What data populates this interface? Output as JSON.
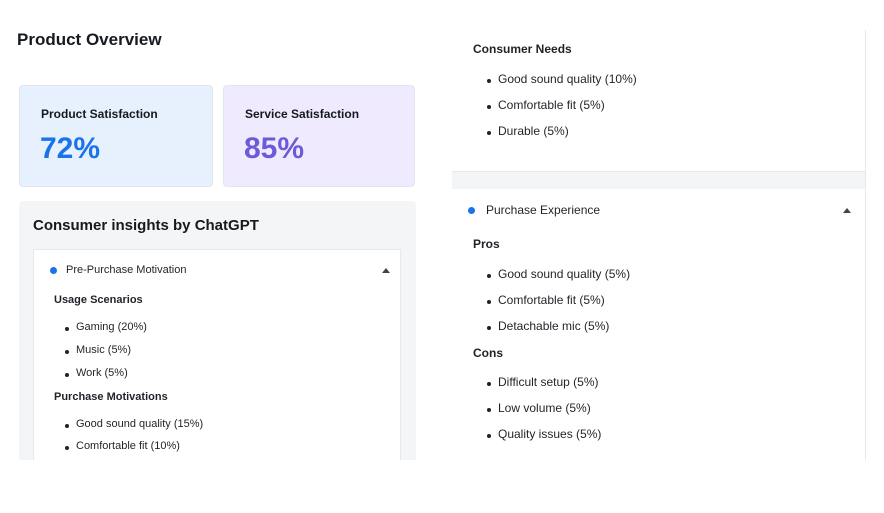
{
  "page_title": "Product Overview",
  "metrics": [
    {
      "label": "Product Satisfaction",
      "value": "72%"
    },
    {
      "label": "Service Satisfaction",
      "value": "85%"
    }
  ],
  "insights": {
    "title": "Consumer insights by ChatGPT",
    "left_accordion": {
      "title": "Pre-Purchase Motivation",
      "sections": [
        {
          "heading": "Usage Scenarios",
          "items": [
            "Gaming (20%)",
            "Music (5%)",
            "Work (5%)"
          ]
        },
        {
          "heading": "Purchase Motivations",
          "items": [
            "Good sound quality (15%)",
            "Comfortable fit (10%)"
          ]
        }
      ]
    },
    "right_top": {
      "sections": [
        {
          "heading": "Consumer Needs",
          "items": [
            "Good sound quality (10%)",
            "Comfortable fit (5%)",
            "Durable (5%)"
          ]
        }
      ]
    },
    "right_accordion": {
      "title": "Purchase Experience",
      "sections": [
        {
          "heading": "Pros",
          "items": [
            "Good sound quality (5%)",
            "Comfortable fit (5%)",
            "Detachable mic (5%)"
          ]
        },
        {
          "heading": "Cons",
          "items": [
            "Difficult setup (5%)",
            "Low volume (5%)",
            "Quality issues (5%)"
          ]
        }
      ]
    }
  },
  "colors": {
    "accent_blue": "#1a73e8",
    "accent_purple": "#6b5bd6"
  },
  "icons": {
    "expanded": "caret-up-icon",
    "status": "blue-dot-icon"
  }
}
